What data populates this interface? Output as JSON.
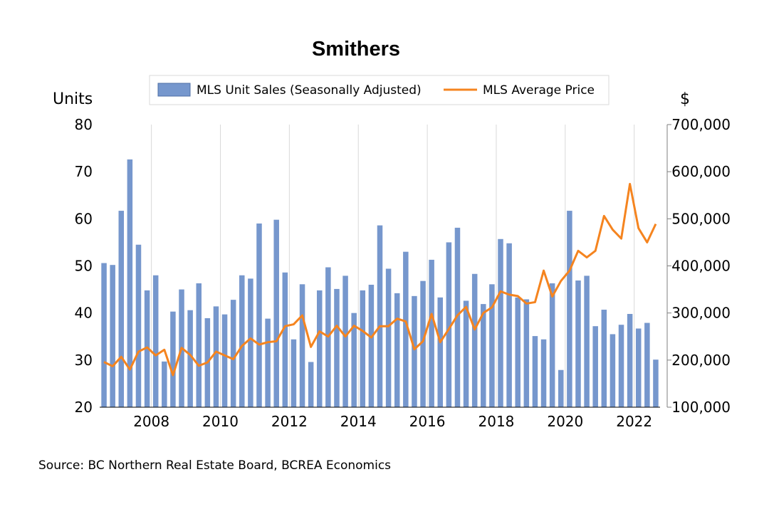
{
  "chart_data": {
    "type": "bar",
    "title": "Smithers",
    "y_left_label": "Units",
    "y_right_label": "$",
    "source": "Source:  BC Northern Real Estate Board, BCREA Economics",
    "legend": {
      "position": "top",
      "bar_label": "MLS Unit Sales (Seasonally Adjusted)",
      "line_label": "MLS Average Price"
    },
    "colors": {
      "bar": "#7697cd",
      "line": "#f5841f",
      "grid": "#d9d9d9"
    },
    "y_left_lim": [
      20,
      80
    ],
    "y_left_ticks": [
      "20",
      "30",
      "40",
      "50",
      "60",
      "70",
      "80"
    ],
    "y_right_lim": [
      100000,
      700000
    ],
    "y_right_ticks": [
      "100,000",
      "200,000",
      "300,000",
      "400,000",
      "500,000",
      "600,000",
      "700,000"
    ],
    "x_ticks": [
      "2008",
      "2010",
      "2012",
      "2014",
      "2016",
      "2018",
      "2020",
      "2022"
    ],
    "x_tick_quarter_index": [
      5,
      13,
      21,
      29,
      37,
      45,
      53,
      61
    ],
    "start": "2006 Q3",
    "frequency": "quarterly",
    "series": [
      {
        "name": "MLS Unit Sales (Seasonally Adjusted)",
        "type": "bar",
        "axis": "left",
        "values": [
          50.6,
          50.2,
          61.7,
          72.6,
          54.5,
          44.8,
          48.0,
          29.7,
          40.3,
          45.0,
          40.6,
          46.3,
          38.9,
          41.4,
          39.7,
          42.8,
          48.0,
          47.3,
          59.0,
          38.8,
          59.8,
          48.6,
          34.4,
          46.1,
          29.6,
          44.8,
          49.7,
          45.1,
          47.9,
          40.0,
          44.8,
          46.0,
          58.6,
          49.4,
          44.2,
          53.0,
          43.6,
          46.8,
          51.3,
          43.3,
          55.0,
          58.1,
          42.6,
          48.3,
          41.9,
          46.1,
          55.7,
          54.8,
          43.3,
          42.9,
          35.1,
          34.4,
          46.3,
          27.9,
          61.7,
          46.9,
          47.9,
          37.2,
          40.7,
          35.5,
          37.5,
          39.8,
          36.7,
          37.9,
          30.1
        ]
      },
      {
        "name": "MLS Average Price",
        "type": "line",
        "axis": "right",
        "values": [
          196000,
          187000,
          207000,
          180000,
          218000,
          227000,
          210000,
          222000,
          168000,
          226000,
          211000,
          188000,
          195000,
          218000,
          210000,
          202000,
          230000,
          246000,
          233000,
          238000,
          240000,
          272000,
          276000,
          295000,
          228000,
          261000,
          250000,
          273000,
          250000,
          273000,
          262000,
          248000,
          272000,
          272000,
          288000,
          282000,
          223000,
          240000,
          298000,
          238000,
          266000,
          295000,
          313000,
          265000,
          300000,
          312000,
          346000,
          339000,
          336000,
          320000,
          323000,
          390000,
          335000,
          368000,
          390000,
          432000,
          418000,
          432000,
          506000,
          477000,
          458000,
          574000,
          480000,
          450000,
          489000
        ]
      }
    ]
  }
}
